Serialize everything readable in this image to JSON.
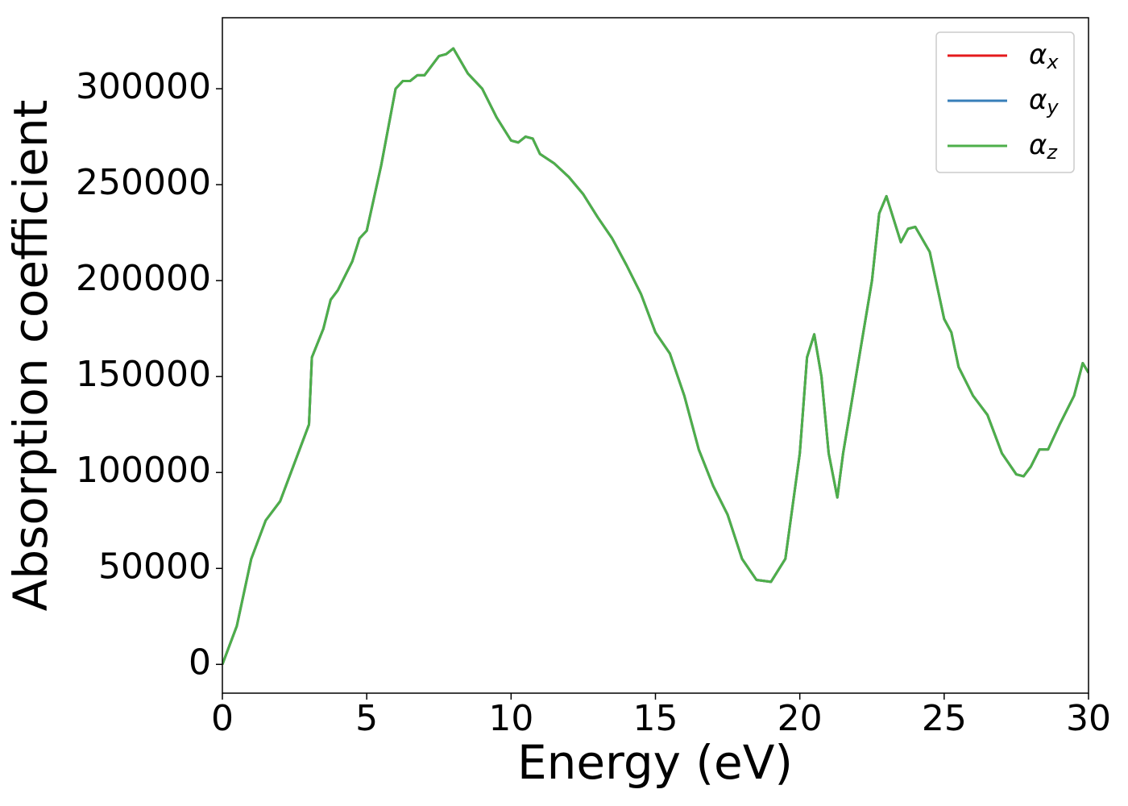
{
  "chart_data": {
    "type": "line",
    "xlabel": "Energy (eV)",
    "ylabel": "Absorption coefficient",
    "x": [
      0,
      0.5,
      1,
      1.5,
      2,
      2.5,
      3,
      3.1,
      3.5,
      3.75,
      4,
      4.5,
      4.75,
      5,
      5.5,
      6,
      6.25,
      6.5,
      6.75,
      7,
      7.5,
      7.75,
      8,
      8.5,
      9,
      9.5,
      10,
      10.25,
      10.5,
      10.75,
      11,
      11.5,
      12,
      12.5,
      13,
      13.5,
      14,
      14.5,
      15,
      15.5,
      16,
      16.5,
      17,
      17.5,
      18,
      18.5,
      19,
      19.5,
      20,
      20.25,
      20.5,
      20.75,
      21,
      21.3,
      21.5,
      22,
      22.5,
      22.75,
      23,
      23.25,
      23.5,
      23.75,
      24,
      24.5,
      25,
      25.25,
      25.5,
      26,
      26.5,
      27,
      27.5,
      27.75,
      28,
      28.3,
      28.6,
      29,
      29.5,
      29.8,
      30
    ],
    "series": [
      {
        "name": "αx",
        "color": "#e41a1c",
        "values": [
          0,
          20000,
          55000,
          75000,
          85000,
          105000,
          125000,
          160000,
          175000,
          190000,
          195000,
          210000,
          222000,
          226000,
          260000,
          300000,
          304000,
          304000,
          307000,
          307000,
          317000,
          318000,
          321000,
          308000,
          300000,
          285000,
          273000,
          272000,
          275000,
          274000,
          266000,
          261000,
          254000,
          245000,
          233000,
          222000,
          208000,
          193000,
          173000,
          162000,
          140000,
          112000,
          93000,
          78000,
          55000,
          44000,
          43000,
          55000,
          110000,
          160000,
          172000,
          150000,
          110000,
          87000,
          110000,
          155000,
          200000,
          235000,
          244000,
          232000,
          220000,
          227000,
          228000,
          215000,
          180000,
          173000,
          155000,
          140000,
          130000,
          110000,
          99000,
          98000,
          103000,
          112000,
          112000,
          125000,
          140000,
          157000,
          152000
        ]
      },
      {
        "name": "αy",
        "color": "#377eb8",
        "values": [
          0,
          20000,
          55000,
          75000,
          85000,
          105000,
          125000,
          160000,
          175000,
          190000,
          195000,
          210000,
          222000,
          226000,
          260000,
          300000,
          304000,
          304000,
          307000,
          307000,
          317000,
          318000,
          321000,
          308000,
          300000,
          285000,
          273000,
          272000,
          275000,
          274000,
          266000,
          261000,
          254000,
          245000,
          233000,
          222000,
          208000,
          193000,
          173000,
          162000,
          140000,
          112000,
          93000,
          78000,
          55000,
          44000,
          43000,
          55000,
          110000,
          160000,
          172000,
          150000,
          110000,
          87000,
          110000,
          155000,
          200000,
          235000,
          244000,
          232000,
          220000,
          227000,
          228000,
          215000,
          180000,
          173000,
          155000,
          140000,
          130000,
          110000,
          99000,
          98000,
          103000,
          112000,
          112000,
          125000,
          140000,
          157000,
          152000
        ]
      },
      {
        "name": "αz",
        "color": "#4daf4a",
        "values": [
          0,
          20000,
          55000,
          75000,
          85000,
          105000,
          125000,
          160000,
          175000,
          190000,
          195000,
          210000,
          222000,
          226000,
          260000,
          300000,
          304000,
          304000,
          307000,
          307000,
          317000,
          318000,
          321000,
          308000,
          300000,
          285000,
          273000,
          272000,
          275000,
          274000,
          266000,
          261000,
          254000,
          245000,
          233000,
          222000,
          208000,
          193000,
          173000,
          162000,
          140000,
          112000,
          93000,
          78000,
          55000,
          44000,
          43000,
          55000,
          110000,
          160000,
          172000,
          150000,
          110000,
          87000,
          110000,
          155000,
          200000,
          235000,
          244000,
          232000,
          220000,
          227000,
          228000,
          215000,
          180000,
          173000,
          155000,
          140000,
          130000,
          110000,
          99000,
          98000,
          103000,
          112000,
          112000,
          125000,
          140000,
          157000,
          152000
        ]
      }
    ],
    "xlim": [
      0,
      30
    ],
    "xticks": [
      0,
      5,
      10,
      15,
      20,
      25,
      30
    ],
    "ylim": [
      -15000,
      337000
    ],
    "yticks": [
      0,
      50000,
      100000,
      150000,
      200000,
      250000,
      300000
    ],
    "grid": false,
    "legend": "upper right"
  }
}
